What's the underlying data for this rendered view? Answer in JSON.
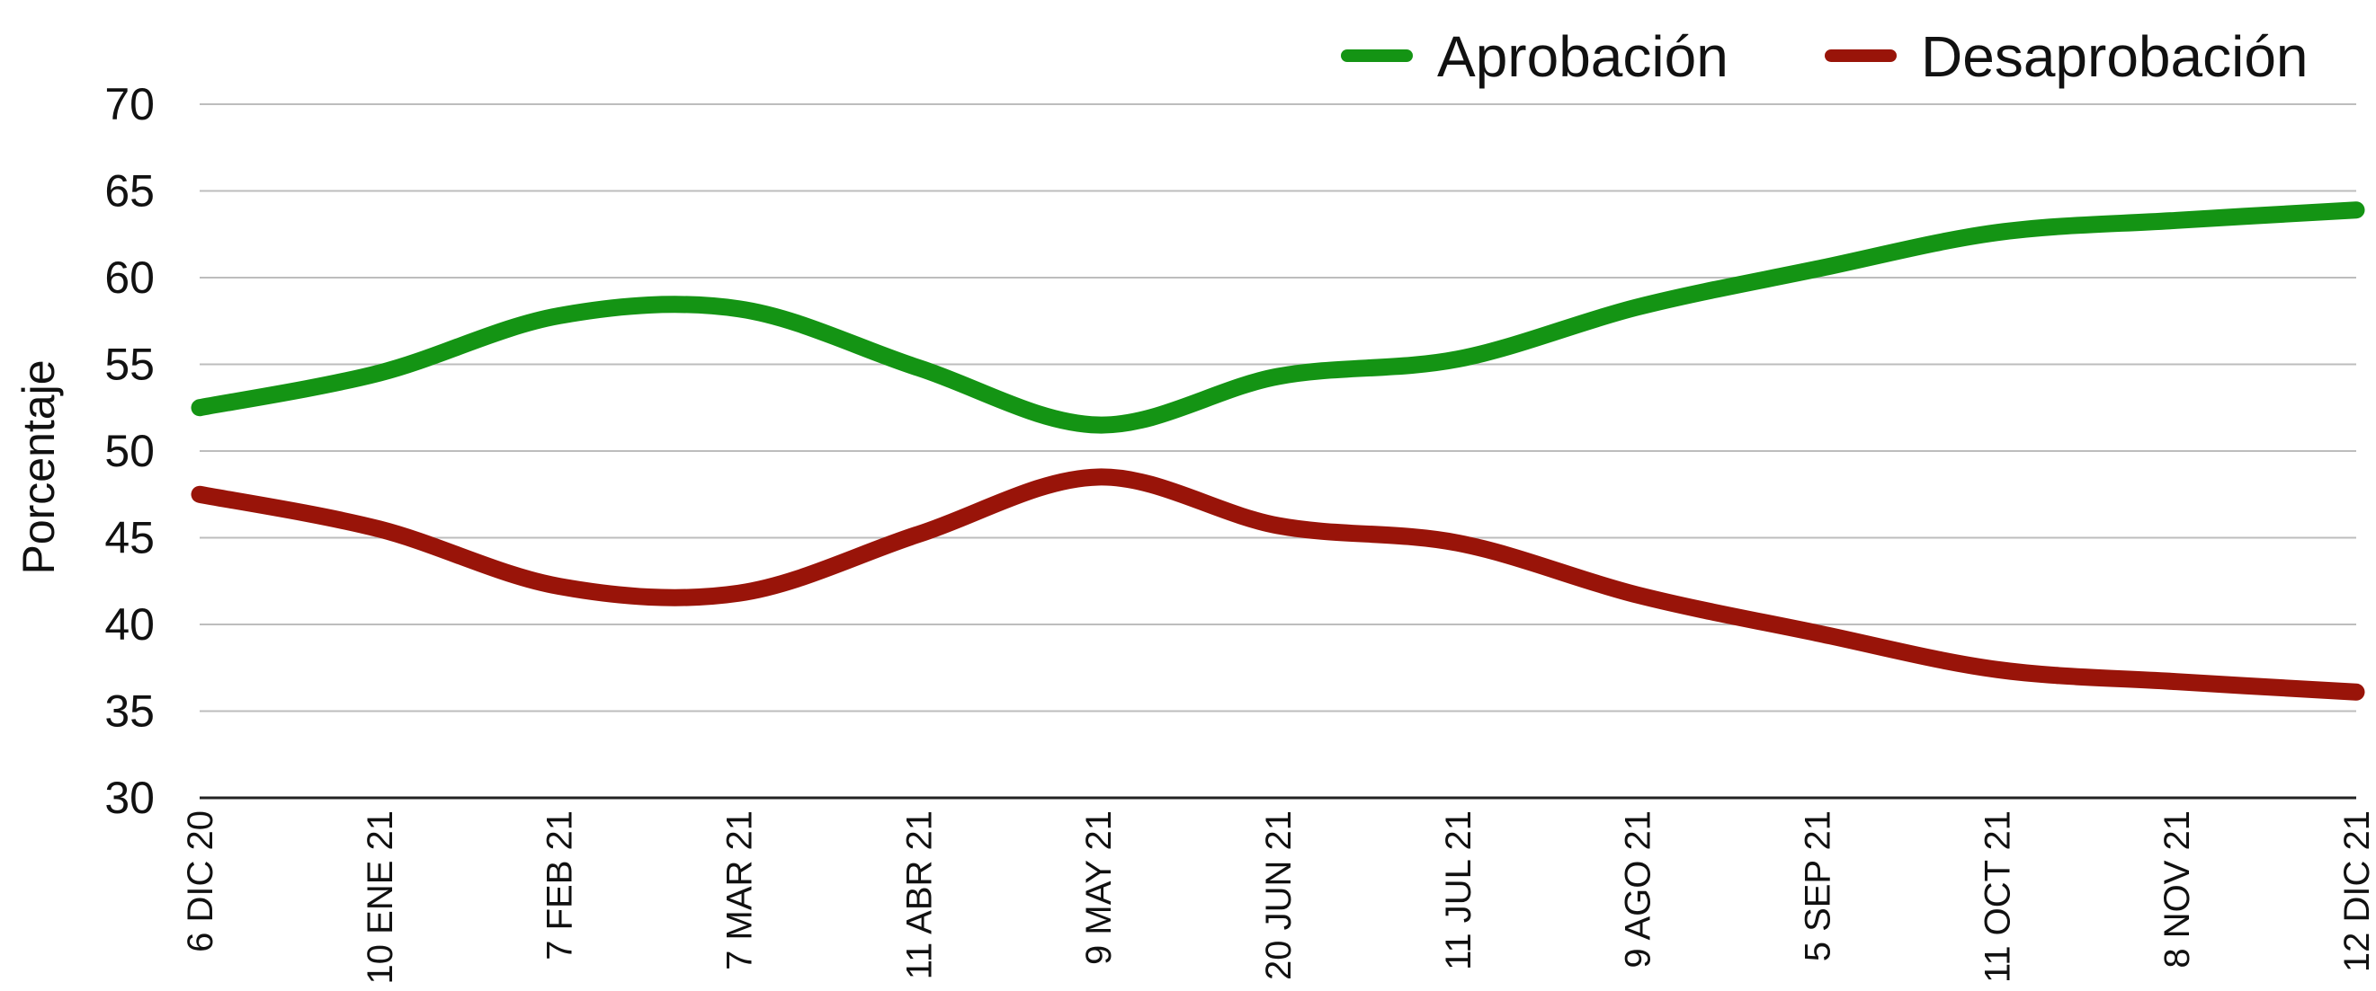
{
  "chart_data": {
    "type": "line",
    "title": "",
    "xlabel": "",
    "ylabel": "Porcentaje",
    "ylim": [
      30,
      70
    ],
    "yticks": [
      "30",
      "35",
      "40",
      "45",
      "50",
      "55",
      "60",
      "65",
      "70"
    ],
    "categories": [
      "6 DIC 20",
      "10 ENE 21",
      "7 FEB 21",
      "7 MAR 21",
      "11 ABR 21",
      "9 MAY 21",
      "20 JUN 21",
      "11 JUL 21",
      "9 AGO 21",
      "5 SEP 21",
      "11 OCT 21",
      "8 NOV 21",
      "12 DIC 21"
    ],
    "series": [
      {
        "name": "Aprobación",
        "color": "#149414",
        "values": [
          52.5,
          54.5,
          57.8,
          58.2,
          54.8,
          51.5,
          54.3,
          55.3,
          58.3,
          60.5,
          62.6,
          63.3,
          63.9
        ]
      },
      {
        "name": "Desaprobación",
        "color": "#991409",
        "values": [
          47.5,
          45.5,
          42.2,
          41.8,
          45.2,
          48.5,
          45.7,
          44.7,
          41.7,
          39.5,
          37.4,
          36.7,
          36.1
        ]
      }
    ],
    "grid": true,
    "legend_position": "top-right"
  }
}
